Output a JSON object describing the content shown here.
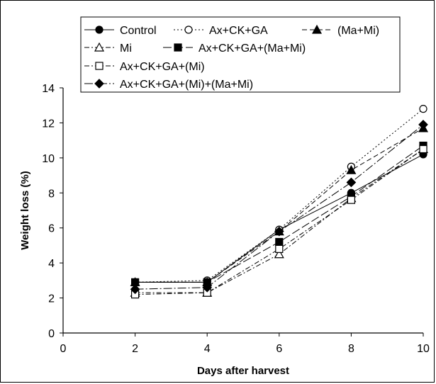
{
  "chart_data": {
    "type": "line",
    "title": "",
    "xlabel": "Days after harvest",
    "ylabel": "Weight loss (%)",
    "xlim": [
      0,
      10
    ],
    "ylim": [
      0,
      14
    ],
    "x_ticks": [
      0,
      2,
      4,
      6,
      8,
      10
    ],
    "y_ticks": [
      0,
      2,
      4,
      6,
      8,
      10,
      12,
      14
    ],
    "grid": false,
    "legend_position": "top",
    "x": [
      2,
      4,
      6,
      8,
      10
    ],
    "series": [
      {
        "name": "Control",
        "marker": "circle",
        "filled": true,
        "dash": "solid",
        "values": [
          2.9,
          2.9,
          5.9,
          8.0,
          10.2
        ]
      },
      {
        "name": "Ax+CK+GA",
        "marker": "circle",
        "filled": false,
        "dash": "dotted",
        "values": [
          2.9,
          3.0,
          5.9,
          9.5,
          12.8
        ]
      },
      {
        "name": "(Ma+Mi)",
        "marker": "triangle",
        "filled": true,
        "dash": "dashed",
        "values": [
          2.9,
          2.9,
          5.8,
          9.3,
          11.7
        ]
      },
      {
        "name": "Mi",
        "marker": "triangle",
        "filled": false,
        "dash": "dashdot",
        "values": [
          2.3,
          2.3,
          4.5,
          7.7,
          10.5
        ]
      },
      {
        "name": "Ax+CK+GA+(Ma+Mi)",
        "marker": "square",
        "filled": true,
        "dash": "longdash",
        "values": [
          2.9,
          2.9,
          5.2,
          7.8,
          10.7
        ]
      },
      {
        "name": "Ax+CK+GA+(Mi)",
        "marker": "square",
        "filled": false,
        "dash": "dashdot",
        "values": [
          2.2,
          2.3,
          4.8,
          7.6,
          10.5
        ]
      },
      {
        "name": "Ax+CK+GA+(Mi)+(Ma+Mi)",
        "marker": "diamond",
        "filled": true,
        "dash": "longdashdot",
        "values": [
          2.5,
          2.6,
          5.8,
          8.6,
          11.9
        ]
      }
    ]
  }
}
